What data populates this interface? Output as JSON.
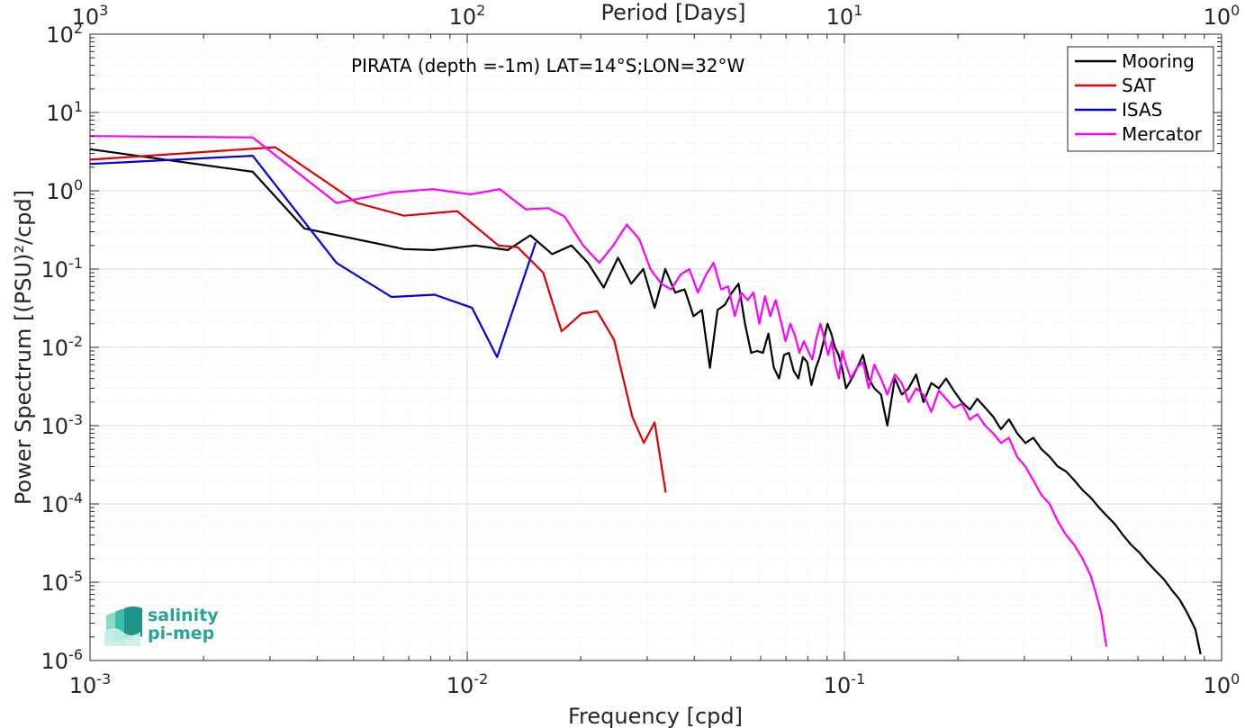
{
  "chart_data": {
    "type": "line",
    "annotation": "PIRATA (depth =-1m) LAT=14°S;LON=32°W",
    "xlabel": "Frequency [cpd]",
    "ylabel": "Power Spectrum [(PSU)²/cpd]",
    "top_axis_label": "Period [Days]",
    "xscale": "log",
    "yscale": "log",
    "xlim": [
      0.001,
      1
    ],
    "ylim": [
      1e-06,
      100
    ],
    "grid": true,
    "minor_grid": true,
    "legend_position": "top-right",
    "x_ticks": [
      {
        "value": 0.001,
        "base": "10",
        "exp": "-3"
      },
      {
        "value": 0.01,
        "base": "10",
        "exp": "-2"
      },
      {
        "value": 0.1,
        "base": "10",
        "exp": "-1"
      },
      {
        "value": 1,
        "base": "10",
        "exp": "0"
      }
    ],
    "top_ticks": [
      {
        "value": 0.001,
        "base": "10",
        "exp": "3"
      },
      {
        "value": 0.01,
        "base": "10",
        "exp": "2"
      },
      {
        "value": 0.1,
        "base": "10",
        "exp": "1"
      },
      {
        "value": 1,
        "base": "10",
        "exp": "0"
      }
    ],
    "y_ticks": [
      {
        "value": 100,
        "base": "10",
        "exp": "2"
      },
      {
        "value": 10,
        "base": "10",
        "exp": "1"
      },
      {
        "value": 1,
        "base": "10",
        "exp": "0"
      },
      {
        "value": 0.1,
        "base": "10",
        "exp": "-1"
      },
      {
        "value": 0.01,
        "base": "10",
        "exp": "-2"
      },
      {
        "value": 0.001,
        "base": "10",
        "exp": "-3"
      },
      {
        "value": 0.0001,
        "base": "10",
        "exp": "-4"
      },
      {
        "value": 1e-05,
        "base": "10",
        "exp": "-5"
      },
      {
        "value": 1e-06,
        "base": "10",
        "exp": "-6"
      }
    ],
    "series": [
      {
        "name": "Mooring",
        "color": "#000000",
        "points": [
          [
            0.001,
            3.4
          ],
          [
            0.0027,
            1.75
          ],
          [
            0.0037,
            0.33
          ],
          [
            0.0068,
            0.18
          ],
          [
            0.0081,
            0.175
          ],
          [
            0.0105,
            0.2
          ],
          [
            0.0128,
            0.175
          ],
          [
            0.0147,
            0.27
          ],
          [
            0.0168,
            0.155
          ],
          [
            0.0189,
            0.2
          ],
          [
            0.0209,
            0.12
          ],
          [
            0.023,
            0.058
          ],
          [
            0.0251,
            0.14
          ],
          [
            0.0272,
            0.065
          ],
          [
            0.0293,
            0.1
          ],
          [
            0.0314,
            0.032
          ],
          [
            0.0335,
            0.1
          ],
          [
            0.0356,
            0.05
          ],
          [
            0.0377,
            0.055
          ],
          [
            0.0398,
            0.025
          ],
          [
            0.0419,
            0.03
          ],
          [
            0.044,
            0.0055
          ],
          [
            0.0461,
            0.03
          ],
          [
            0.0482,
            0.035
          ],
          [
            0.0503,
            0.05
          ],
          [
            0.0524,
            0.065
          ],
          [
            0.0545,
            0.02
          ],
          [
            0.0566,
            0.0085
          ],
          [
            0.0587,
            0.009
          ],
          [
            0.0608,
            0.0085
          ],
          [
            0.0629,
            0.015
          ],
          [
            0.065,
            0.0055
          ],
          [
            0.0671,
            0.004
          ],
          [
            0.0692,
            0.008
          ],
          [
            0.0713,
            0.0085
          ],
          [
            0.0734,
            0.005
          ],
          [
            0.0755,
            0.004
          ],
          [
            0.0776,
            0.0075
          ],
          [
            0.0797,
            0.0065
          ],
          [
            0.0818,
            0.0033
          ],
          [
            0.0839,
            0.0054
          ],
          [
            0.086,
            0.0075
          ],
          [
            0.0881,
            0.012
          ],
          [
            0.0902,
            0.02
          ],
          [
            0.0923,
            0.015
          ],
          [
            0.0944,
            0.01
          ],
          [
            0.0965,
            0.008
          ],
          [
            0.0986,
            0.0055
          ],
          [
            0.101,
            0.003
          ],
          [
            0.103,
            0.0035
          ],
          [
            0.106,
            0.0045
          ],
          [
            0.109,
            0.006
          ],
          [
            0.112,
            0.008
          ],
          [
            0.116,
            0.004
          ],
          [
            0.12,
            0.003
          ],
          [
            0.125,
            0.0025
          ],
          [
            0.13,
            0.001
          ],
          [
            0.136,
            0.004
          ],
          [
            0.142,
            0.0025
          ],
          [
            0.148,
            0.003
          ],
          [
            0.155,
            0.0045
          ],
          [
            0.162,
            0.002
          ],
          [
            0.17,
            0.0035
          ],
          [
            0.178,
            0.003
          ],
          [
            0.186,
            0.004
          ],
          [
            0.195,
            0.0028
          ],
          [
            0.205,
            0.002
          ],
          [
            0.215,
            0.0016
          ],
          [
            0.225,
            0.0022
          ],
          [
            0.236,
            0.0017
          ],
          [
            0.248,
            0.0013
          ],
          [
            0.26,
            0.0009
          ],
          [
            0.273,
            0.0012
          ],
          [
            0.287,
            0.0008
          ],
          [
            0.302,
            0.0006
          ],
          [
            0.317,
            0.0007
          ],
          [
            0.333,
            0.0005
          ],
          [
            0.35,
            0.0004
          ],
          [
            0.368,
            0.0003
          ],
          [
            0.387,
            0.00026
          ],
          [
            0.407,
            0.0002
          ],
          [
            0.428,
            0.00015
          ],
          [
            0.45,
            0.00012
          ],
          [
            0.473,
            9e-05
          ],
          [
            0.497,
            7e-05
          ],
          [
            0.522,
            5.5e-05
          ],
          [
            0.548,
            4e-05
          ],
          [
            0.576,
            3e-05
          ],
          [
            0.605,
            2.4e-05
          ],
          [
            0.636,
            1.8e-05
          ],
          [
            0.668,
            1.4e-05
          ],
          [
            0.702,
            1.1e-05
          ],
          [
            0.737,
            8e-06
          ],
          [
            0.774,
            6e-06
          ],
          [
            0.812,
            4e-06
          ],
          [
            0.852,
            2.5e-06
          ],
          [
            0.88,
            1.2e-06
          ]
        ]
      },
      {
        "name": "SAT",
        "color": "#e00000",
        "points": [
          [
            0.001,
            2.5
          ],
          [
            0.0031,
            3.6
          ],
          [
            0.0051,
            0.7
          ],
          [
            0.0068,
            0.48
          ],
          [
            0.0094,
            0.55
          ],
          [
            0.0121,
            0.2
          ],
          [
            0.0136,
            0.19
          ],
          [
            0.0159,
            0.09
          ],
          [
            0.0178,
            0.016
          ],
          [
            0.0201,
            0.027
          ],
          [
            0.0221,
            0.029
          ],
          [
            0.0245,
            0.0125
          ],
          [
            0.0274,
            0.0013
          ],
          [
            0.0294,
            0.0006
          ],
          [
            0.0314,
            0.0011
          ],
          [
            0.0336,
            0.00014
          ]
        ]
      },
      {
        "name": "ISAS",
        "color": "#0000e0",
        "points": [
          [
            0.001,
            2.2
          ],
          [
            0.0027,
            2.8
          ],
          [
            0.0045,
            0.12
          ],
          [
            0.0063,
            0.044
          ],
          [
            0.0082,
            0.047
          ],
          [
            0.0103,
            0.032
          ],
          [
            0.012,
            0.0075
          ],
          [
            0.0152,
            0.22
          ]
        ]
      },
      {
        "name": "Mercator",
        "color": "#ff00ff",
        "points": [
          [
            0.001,
            5.0
          ],
          [
            0.0027,
            4.8
          ],
          [
            0.0045,
            0.7
          ],
          [
            0.0063,
            0.95
          ],
          [
            0.0081,
            1.05
          ],
          [
            0.0102,
            0.9
          ],
          [
            0.0122,
            1.05
          ],
          [
            0.0143,
            0.58
          ],
          [
            0.0164,
            0.6
          ],
          [
            0.0181,
            0.47
          ],
          [
            0.0203,
            0.2
          ],
          [
            0.0224,
            0.12
          ],
          [
            0.0244,
            0.2
          ],
          [
            0.0265,
            0.37
          ],
          [
            0.0286,
            0.24
          ],
          [
            0.0306,
            0.1
          ],
          [
            0.0327,
            0.065
          ],
          [
            0.0347,
            0.055
          ],
          [
            0.0368,
            0.085
          ],
          [
            0.0388,
            0.1
          ],
          [
            0.0409,
            0.05
          ],
          [
            0.043,
            0.085
          ],
          [
            0.045,
            0.12
          ],
          [
            0.0471,
            0.055
          ],
          [
            0.0492,
            0.06
          ],
          [
            0.0512,
            0.025
          ],
          [
            0.0533,
            0.05
          ],
          [
            0.0554,
            0.04
          ],
          [
            0.0574,
            0.05
          ],
          [
            0.0595,
            0.02
          ],
          [
            0.0616,
            0.045
          ],
          [
            0.0636,
            0.025
          ],
          [
            0.0657,
            0.04
          ],
          [
            0.0678,
            0.022
          ],
          [
            0.0698,
            0.012
          ],
          [
            0.0719,
            0.02
          ],
          [
            0.074,
            0.014
          ],
          [
            0.076,
            0.0085
          ],
          [
            0.0781,
            0.012
          ],
          [
            0.0802,
            0.009
          ],
          [
            0.0822,
            0.007
          ],
          [
            0.0843,
            0.013
          ],
          [
            0.0864,
            0.02
          ],
          [
            0.0884,
            0.013
          ],
          [
            0.0905,
            0.008
          ],
          [
            0.0926,
            0.012
          ],
          [
            0.0946,
            0.006
          ],
          [
            0.0967,
            0.004
          ],
          [
            0.0988,
            0.009
          ],
          [
            0.101,
            0.006
          ],
          [
            0.104,
            0.004
          ],
          [
            0.108,
            0.0055
          ],
          [
            0.112,
            0.0065
          ],
          [
            0.116,
            0.003
          ],
          [
            0.12,
            0.006
          ],
          [
            0.125,
            0.004
          ],
          [
            0.13,
            0.0025
          ],
          [
            0.136,
            0.0045
          ],
          [
            0.142,
            0.0035
          ],
          [
            0.148,
            0.002
          ],
          [
            0.155,
            0.003
          ],
          [
            0.162,
            0.0025
          ],
          [
            0.17,
            0.0015
          ],
          [
            0.178,
            0.0028
          ],
          [
            0.186,
            0.0022
          ],
          [
            0.195,
            0.0017
          ],
          [
            0.205,
            0.0019
          ],
          [
            0.215,
            0.0012
          ],
          [
            0.225,
            0.0014
          ],
          [
            0.236,
            0.001
          ],
          [
            0.248,
            0.0008
          ],
          [
            0.26,
            0.0006
          ],
          [
            0.273,
            0.0007
          ],
          [
            0.287,
            0.0004
          ],
          [
            0.302,
            0.0003
          ],
          [
            0.317,
            0.0002
          ],
          [
            0.333,
            0.00013
          ],
          [
            0.35,
            0.0001
          ],
          [
            0.368,
            6e-05
          ],
          [
            0.387,
            4e-05
          ],
          [
            0.407,
            3e-05
          ],
          [
            0.428,
            2e-05
          ],
          [
            0.45,
            1.2e-05
          ],
          [
            0.465,
            7e-06
          ],
          [
            0.48,
            4e-06
          ],
          [
            0.495,
            1.5e-06
          ]
        ]
      }
    ]
  },
  "logo": {
    "line1": "salinity",
    "line2": "pi-mep"
  }
}
